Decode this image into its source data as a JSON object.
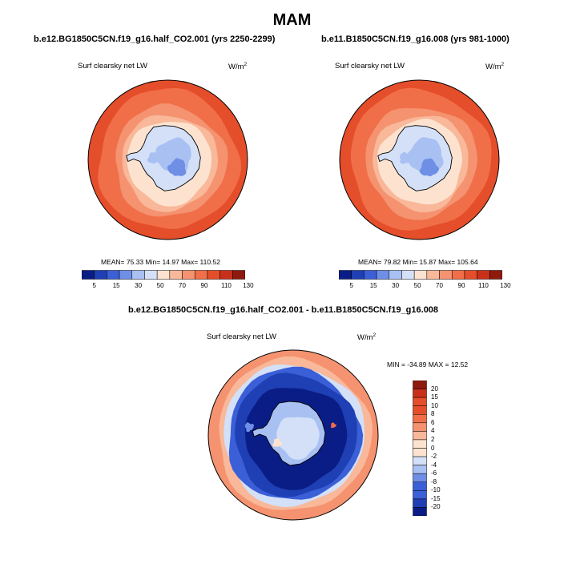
{
  "page_title": "MAM",
  "colors": {
    "levels_absolute": [
      "#0a1d86",
      "#1f3fb4",
      "#3b5fd6",
      "#6f8fe6",
      "#a9c0f2",
      "#d3e0f8",
      "#fde3cf",
      "#f8b899",
      "#f59270",
      "#f06f48",
      "#e54e2a",
      "#c9301a",
      "#8e1a0d"
    ],
    "levels_difference": [
      "#0a1d86",
      "#1f3fb4",
      "#3b5fd6",
      "#6f8fe6",
      "#a9c0f2",
      "#d3e0f8",
      "#fde3cf",
      "#f8b899",
      "#f59270",
      "#f06f48",
      "#e54e2a",
      "#c9301a",
      "#8e1a0d"
    ],
    "coastline": "#000000"
  },
  "chart_data": [
    {
      "type": "heatmap",
      "projection": "south-polar-stereographic",
      "case_title": "b.e12.BG1850C5CN.f19_g16.half_CO2.001 (yrs 2250-2299)",
      "variable_label": "Surf clearsky net LW",
      "units_base": "W/m",
      "units_exp": "2",
      "stats_text": "MEAN=  75.33  Min=  14.97  Max= 110.52",
      "mean": 75.33,
      "min": 14.97,
      "max": 110.52,
      "colorbar_ticks": [
        "5",
        "15",
        "30",
        "50",
        "70",
        "90",
        "110",
        "130"
      ],
      "colorbar_orientation": "horizontal"
    },
    {
      "type": "heatmap",
      "projection": "south-polar-stereographic",
      "case_title": "b.e11.B1850C5CN.f19_g16.008 (yrs 981-1000)",
      "variable_label": "Surf clearsky net LW",
      "units_base": "W/m",
      "units_exp": "2",
      "stats_text": "MEAN=  79.82  Min=  15.87  Max= 105.64",
      "mean": 79.82,
      "min": 15.87,
      "max": 105.64,
      "colorbar_ticks": [
        "5",
        "15",
        "30",
        "50",
        "70",
        "90",
        "110",
        "130"
      ],
      "colorbar_orientation": "horizontal"
    },
    {
      "type": "heatmap",
      "projection": "south-polar-stereographic",
      "case_title": "b.e12.BG1850C5CN.f19_g16.half_CO2.001 - b.e11.B1850C5CN.f19_g16.008",
      "variable_label": "Surf clearsky net LW",
      "units_base": "W/m",
      "units_exp": "2",
      "stats_text": "MIN = -34.89 MAX =  12.52",
      "min": -34.89,
      "max": 12.52,
      "colorbar_ticks": [
        "20",
        "15",
        "10",
        "8",
        "6",
        "4",
        "2",
        "0",
        "-2",
        "-4",
        "-6",
        "-8",
        "-10",
        "-15",
        "-20"
      ],
      "colorbar_orientation": "vertical"
    }
  ]
}
